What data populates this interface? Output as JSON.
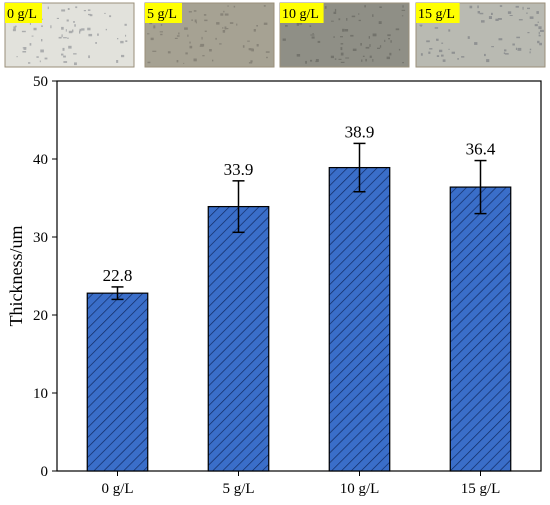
{
  "photos": [
    {
      "label": "0 g/L",
      "tone": "#e2e2dc",
      "speck": "#7d8088"
    },
    {
      "label": "5 g/L",
      "tone": "#a6a293",
      "speck": "#6f6b62"
    },
    {
      "label": "10 g/L",
      "tone": "#8f8f86",
      "speck": "#5d5d58"
    },
    {
      "label": "15 g/L",
      "tone": "#b9bab2",
      "speck": "#6e7078"
    }
  ],
  "chart_data": {
    "type": "bar",
    "categories": [
      "0 g/L",
      "5 g/L",
      "10 g/L",
      "15 g/L"
    ],
    "values": [
      22.8,
      33.9,
      38.9,
      36.4
    ],
    "value_labels": [
      "22.8",
      "33.9",
      "38.9",
      "36.4"
    ],
    "error_low": [
      22.0,
      30.6,
      35.8,
      33.0
    ],
    "error_high": [
      23.6,
      37.2,
      42.0,
      39.8
    ],
    "ylabel": "Thickness/um",
    "ylim": [
      0,
      50
    ],
    "yticks": [
      0,
      10,
      20,
      30,
      40,
      50
    ],
    "bar_color": "#3a6ec9",
    "hatch_color": "#102a63",
    "grid": false
  }
}
